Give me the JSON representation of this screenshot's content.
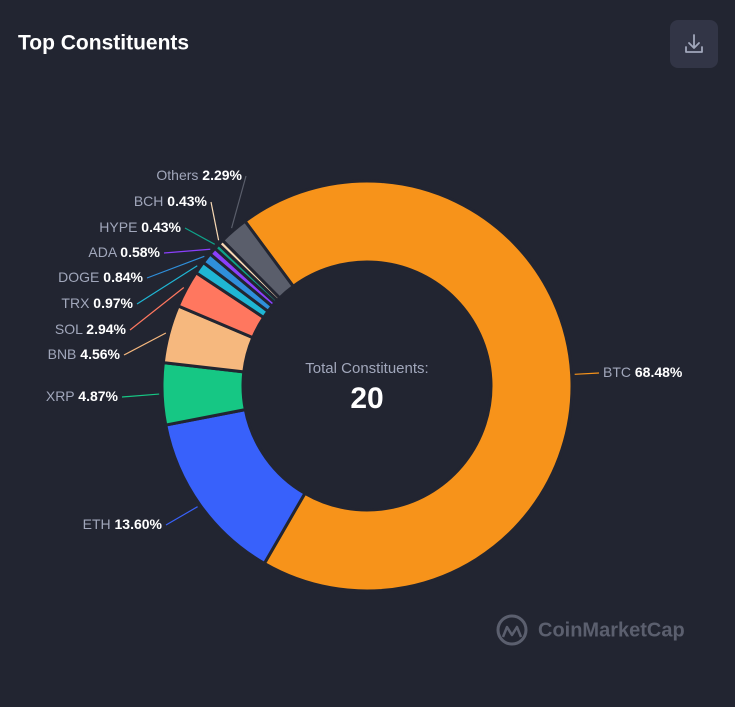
{
  "chart_data": {
    "type": "pie",
    "title": "Top Constituents",
    "categories": [
      "BTC",
      "ETH",
      "XRP",
      "BNB",
      "SOL",
      "TRX",
      "DOGE",
      "ADA",
      "HYPE",
      "BCH",
      "Others"
    ],
    "values": [
      68.48,
      13.6,
      4.87,
      4.56,
      2.94,
      0.97,
      0.84,
      0.58,
      0.43,
      0.43,
      2.29
    ],
    "value_labels": [
      "68.48%",
      "13.60%",
      "4.87%",
      "4.56%",
      "2.94%",
      "0.97%",
      "0.84%",
      "0.58%",
      "0.43%",
      "0.43%",
      "2.29%"
    ],
    "colors": [
      "#f7931a",
      "#3861fb",
      "#16c784",
      "#f6b87e",
      "#ff775f",
      "#1fb6d4",
      "#2f8fdb",
      "#8a3ffc",
      "#0fa38a",
      "#f9d9b4",
      "#5a5e6b"
    ],
    "center_label": "Total Constituents:",
    "center_value": 20,
    "watermark": "CoinMarketCap"
  }
}
